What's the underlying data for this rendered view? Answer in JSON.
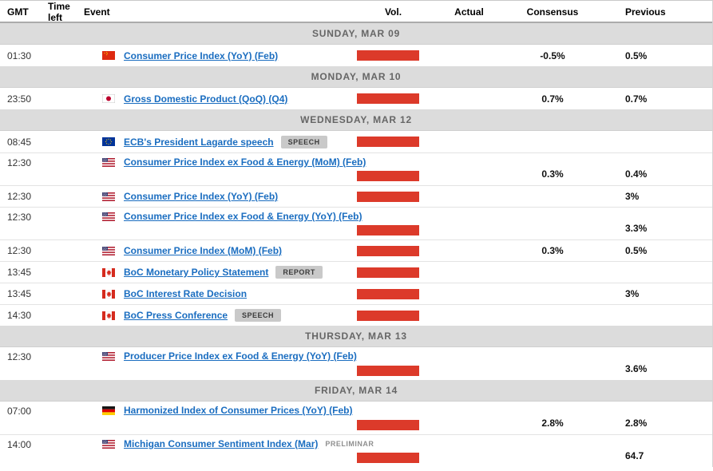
{
  "header": {
    "gmt": "GMT",
    "time_left": "Time left",
    "event": "Event",
    "vol": "Vol.",
    "actual": "Actual",
    "consensus": "Consensus",
    "previous": "Previous"
  },
  "colors": {
    "volatility_bar": "#dc3a2a",
    "event_link": "#1a6dc0",
    "day_separator_bg": "#dcdcdc",
    "badge_bg": "#c9c9c9"
  },
  "rows": [
    {
      "type": "day",
      "label": "SUNDAY, MAR 09"
    },
    {
      "type": "event",
      "time": "01:30",
      "time_left": "",
      "country": "cn",
      "flag": "china-flag",
      "title": "Consumer Price Index (YoY) (Feb)",
      "badge": null,
      "tall": false,
      "actual": "",
      "consensus": "-0.5%",
      "previous": "0.5%"
    },
    {
      "type": "day",
      "label": "MONDAY, MAR 10"
    },
    {
      "type": "event",
      "time": "23:50",
      "time_left": "",
      "country": "jp",
      "flag": "japan-flag",
      "title": "Gross Domestic Product (QoQ) (Q4)",
      "badge": null,
      "tall": false,
      "actual": "",
      "consensus": "0.7%",
      "previous": "0.7%"
    },
    {
      "type": "day",
      "label": "WEDNESDAY, MAR 12"
    },
    {
      "type": "event",
      "time": "08:45",
      "time_left": "",
      "country": "eu",
      "flag": "european-union-flag",
      "title": "ECB's President Lagarde speech",
      "badge": {
        "label": "SPEECH",
        "style": "solid"
      },
      "tall": false,
      "actual": "",
      "consensus": "",
      "previous": ""
    },
    {
      "type": "event",
      "time": "12:30",
      "time_left": "",
      "country": "us",
      "flag": "united-states-flag",
      "title": "Consumer Price Index ex Food & Energy (MoM) (Feb)",
      "badge": null,
      "tall": true,
      "actual": "",
      "consensus": "0.3%",
      "previous": "0.4%"
    },
    {
      "type": "event",
      "time": "12:30",
      "time_left": "",
      "country": "us",
      "flag": "united-states-flag",
      "title": "Consumer Price Index (YoY) (Feb)",
      "badge": null,
      "tall": false,
      "actual": "",
      "consensus": "",
      "previous": "3%"
    },
    {
      "type": "event",
      "time": "12:30",
      "time_left": "",
      "country": "us",
      "flag": "united-states-flag",
      "title": "Consumer Price Index ex Food & Energy (YoY) (Feb)",
      "badge": null,
      "tall": true,
      "actual": "",
      "consensus": "",
      "previous": "3.3%"
    },
    {
      "type": "event",
      "time": "12:30",
      "time_left": "",
      "country": "us",
      "flag": "united-states-flag",
      "title": "Consumer Price Index (MoM) (Feb)",
      "badge": null,
      "tall": false,
      "actual": "",
      "consensus": "0.3%",
      "previous": "0.5%"
    },
    {
      "type": "event",
      "time": "13:45",
      "time_left": "",
      "country": "ca",
      "flag": "canada-flag",
      "title": "BoC Monetary Policy Statement",
      "badge": {
        "label": "REPORT",
        "style": "solid"
      },
      "tall": false,
      "actual": "",
      "consensus": "",
      "previous": ""
    },
    {
      "type": "event",
      "time": "13:45",
      "time_left": "",
      "country": "ca",
      "flag": "canada-flag",
      "title": "BoC Interest Rate Decision",
      "badge": null,
      "tall": false,
      "actual": "",
      "consensus": "",
      "previous": "3%"
    },
    {
      "type": "event",
      "time": "14:30",
      "time_left": "",
      "country": "ca",
      "flag": "canada-flag",
      "title": "BoC Press Conference",
      "badge": {
        "label": "SPEECH",
        "style": "solid"
      },
      "tall": false,
      "actual": "",
      "consensus": "",
      "previous": ""
    },
    {
      "type": "day",
      "label": "THURSDAY, MAR 13"
    },
    {
      "type": "event",
      "time": "12:30",
      "time_left": "",
      "country": "us",
      "flag": "united-states-flag",
      "title": "Producer Price Index ex Food & Energy (YoY) (Feb)",
      "badge": null,
      "tall": true,
      "actual": "",
      "consensus": "",
      "previous": "3.6%"
    },
    {
      "type": "day",
      "label": "FRIDAY, MAR 14"
    },
    {
      "type": "event",
      "time": "07:00",
      "time_left": "",
      "country": "de",
      "flag": "germany-flag",
      "title": "Harmonized Index of Consumer Prices (YoY) (Feb)",
      "badge": null,
      "tall": true,
      "actual": "",
      "consensus": "2.8%",
      "previous": "2.8%"
    },
    {
      "type": "event",
      "time": "14:00",
      "time_left": "",
      "country": "us",
      "flag": "united-states-flag",
      "title": "Michigan Consumer Sentiment Index (Mar)",
      "badge": {
        "label": "PRELIMINAR",
        "style": "plain"
      },
      "tall": true,
      "actual": "",
      "consensus": "",
      "previous": "64.7"
    }
  ]
}
